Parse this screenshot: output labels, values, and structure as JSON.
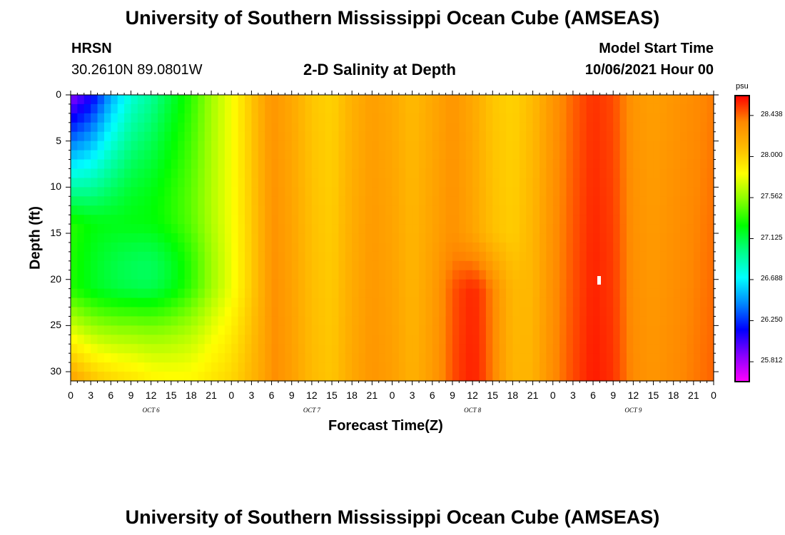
{
  "header": {
    "title_top": "University of Southern Mississippi Ocean Cube (AMSEAS)",
    "title_bottom": "University of Southern Mississippi Ocean Cube (AMSEAS)",
    "station": "HRSN",
    "coords": "30.2610N  89.0801W",
    "plot_title": "2-D Salinity at Depth",
    "model_label": "Model Start Time",
    "model_time": "10/06/2021 Hour 00"
  },
  "chart_data": {
    "type": "heatmap",
    "title": "2-D Salinity at Depth",
    "xlabel": "Forecast Time(Z)",
    "ylabel": "Depth (ft)",
    "x_start_hour": 0,
    "x_end_hour": 96,
    "x_tick_step_hours": 3,
    "x_tick_labels": [
      "0",
      "3",
      "6",
      "9",
      "12",
      "15",
      "18",
      "21",
      "0",
      "3",
      "6",
      "9",
      "12",
      "15",
      "18",
      "21",
      "0",
      "3",
      "6",
      "9",
      "12",
      "15",
      "18",
      "21",
      "0",
      "3",
      "6",
      "9",
      "12",
      "15",
      "18",
      "21",
      "0"
    ],
    "day_labels": [
      {
        "label": "OCT 6",
        "hour": 12
      },
      {
        "label": "OCT 7",
        "hour": 36
      },
      {
        "label": "OCT 8",
        "hour": 60
      },
      {
        "label": "OCT 9",
        "hour": 84
      }
    ],
    "ylim": [
      0,
      31
    ],
    "y_ticks": [
      0,
      5,
      10,
      15,
      20,
      25,
      30
    ],
    "y_tick_labels": [
      "0",
      "5",
      "10",
      "15",
      "20",
      "25",
      "30"
    ],
    "colorbar": {
      "unit": "psu",
      "min": 25.6,
      "max": 28.65,
      "tick_values": [
        25.812,
        26.25,
        26.688,
        27.125,
        27.562,
        28.0,
        28.438
      ],
      "tick_labels": [
        "25.812",
        "26.250",
        "26.688",
        "27.125",
        "27.562",
        "28.000",
        "28.438"
      ],
      "colors": [
        "#ff00ff",
        "#8800ff",
        "#0000ff",
        "#0088ff",
        "#00ffff",
        "#00ff88",
        "#00ff00",
        "#88ff00",
        "#ffff00",
        "#ffbb00",
        "#ff8800",
        "#ff0000"
      ]
    },
    "surface_salinity_by_hour": [
      {
        "hour": 0,
        "value": 25.85
      },
      {
        "hour": 3,
        "value": 26.1
      },
      {
        "hour": 6,
        "value": 26.5
      },
      {
        "hour": 9,
        "value": 26.8
      },
      {
        "hour": 12,
        "value": 26.95
      },
      {
        "hour": 15,
        "value": 27.15
      },
      {
        "hour": 18,
        "value": 27.35
      },
      {
        "hour": 21,
        "value": 27.6
      },
      {
        "hour": 24,
        "value": 27.8
      },
      {
        "hour": 27,
        "value": 28.05
      },
      {
        "hour": 30,
        "value": 28.3
      },
      {
        "hour": 33,
        "value": 28.2
      },
      {
        "hour": 36,
        "value": 28.05
      },
      {
        "hour": 39,
        "value": 28.0
      },
      {
        "hour": 42,
        "value": 28.15
      },
      {
        "hour": 45,
        "value": 28.25
      },
      {
        "hour": 48,
        "value": 28.2
      },
      {
        "hour": 51,
        "value": 28.1
      },
      {
        "hour": 54,
        "value": 28.2
      },
      {
        "hour": 57,
        "value": 28.3
      },
      {
        "hour": 60,
        "value": 28.2
      },
      {
        "hour": 63,
        "value": 28.05
      },
      {
        "hour": 66,
        "value": 28.0
      },
      {
        "hour": 69,
        "value": 28.1
      },
      {
        "hour": 72,
        "value": 28.3
      },
      {
        "hour": 75,
        "value": 28.45
      },
      {
        "hour": 78,
        "value": 28.55
      },
      {
        "hour": 81,
        "value": 28.5
      },
      {
        "hour": 84,
        "value": 28.3
      },
      {
        "hour": 87,
        "value": 28.25
      },
      {
        "hour": 90,
        "value": 28.3
      },
      {
        "hour": 93,
        "value": 28.35
      },
      {
        "hour": 96,
        "value": 28.4
      }
    ],
    "deep_features": [
      {
        "note": "fresh low (green) core near hour 12, depth ~19 ft",
        "hour": 12,
        "depth": 19,
        "value": 27.4
      },
      {
        "note": "salty high (red) near hour 60-63 below 17 ft",
        "hour": 61,
        "depth": 25,
        "value": 28.5
      }
    ]
  }
}
